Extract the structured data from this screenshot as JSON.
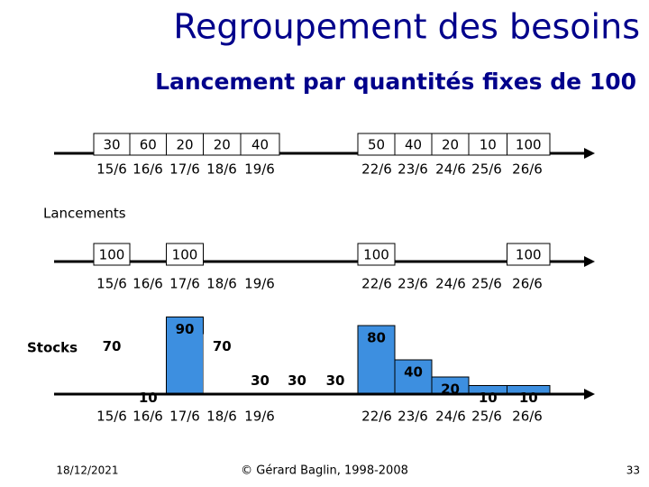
{
  "header": {
    "title": "Regroupement des besoins",
    "subtitle": "Lancement par quantités fixes de 100"
  },
  "days": [
    "15/6",
    "16/6",
    "17/6",
    "18/6",
    "19/6",
    null,
    null,
    "22/6",
    "23/6",
    "24/6",
    "25/6",
    "26/6"
  ],
  "needs": [
    30,
    60,
    20,
    20,
    40,
    null,
    null,
    50,
    40,
    20,
    10,
    100
  ],
  "launches_label": "Lancements",
  "launches": [
    100,
    null,
    100,
    null,
    null,
    null,
    null,
    100,
    null,
    null,
    null,
    100
  ],
  "stocks_label": "Stocks",
  "stocks": [
    70,
    10,
    90,
    70,
    30,
    30,
    30,
    80,
    40,
    20,
    10,
    10
  ],
  "stock_colors": [
    "#ffffff",
    "#ffffff",
    "#3d8fe0",
    "#ffffff",
    "#ffffff",
    "#ffffff",
    "#ffffff",
    "#3d8fe0",
    "#3d8fe0",
    "#3d8fe0",
    "#3d8fe0",
    "#3d8fe0"
  ],
  "footer": {
    "date": "18/12/2021",
    "copyright": "© Gérard Baglin, 1998-2008",
    "page": "33"
  }
}
